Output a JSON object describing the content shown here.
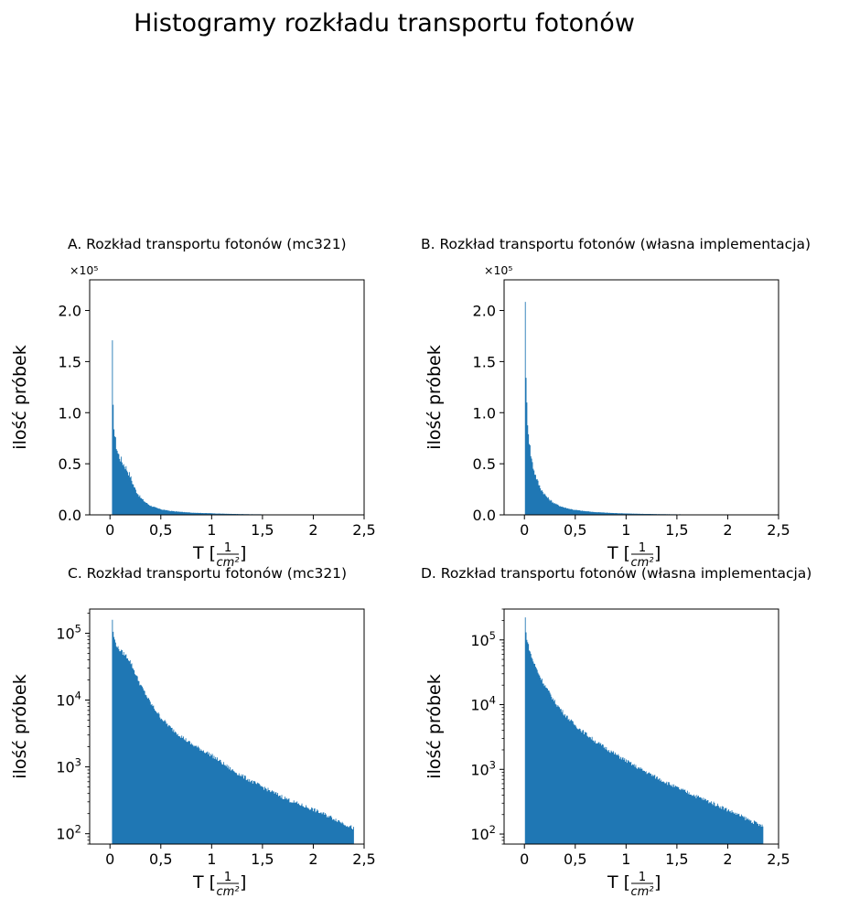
{
  "figure": {
    "title": "Histogramy rozkładu transportu fotonów"
  },
  "chart_data": [
    {
      "type": "bar",
      "id": "A",
      "title": "A. Rozkład transportu fotonów (mc321)",
      "xlabel": "T [1/cm²]",
      "xlabel_main": "T [",
      "xlabel_num": "1",
      "xlabel_den": "cm²",
      "xlabel_close": "]",
      "ylabel": "ilość próbek",
      "yscale": "linear",
      "y_multiplier": "×10⁵",
      "xlim": [
        -0.2,
        2.5
      ],
      "ylim": [
        0,
        230000
      ],
      "xticks": [
        0,
        0.5,
        1,
        1.5,
        2,
        2.5
      ],
      "xtick_labels": [
        "0",
        "0,5",
        "1",
        "1,5",
        "2",
        "2,5"
      ],
      "yticks": [
        0,
        50000,
        100000,
        150000,
        200000
      ],
      "ytick_labels": [
        "0.0",
        "0.5",
        "1.0",
        "1.5",
        "2.0"
      ],
      "color": "#1f77b4",
      "x": [
        0.02,
        0.03,
        0.05,
        0.08,
        0.12,
        0.16,
        0.2,
        0.25,
        0.3,
        0.4,
        0.5,
        0.6,
        0.8,
        1.0,
        1.2,
        1.4,
        1.6,
        1.8,
        2.0,
        2.2,
        2.4
      ],
      "values": [
        162000,
        105000,
        75000,
        60000,
        52000,
        46000,
        38000,
        25000,
        17000,
        9000,
        5500,
        3800,
        2200,
        1500,
        900,
        600,
        420,
        300,
        230,
        170,
        120
      ]
    },
    {
      "type": "bar",
      "id": "B",
      "title": "B. Rozkład transportu fotonów (własna implementacja)",
      "xlabel": "T [1/cm²]",
      "xlabel_main": "T [",
      "xlabel_num": "1",
      "xlabel_den": "cm²",
      "xlabel_close": "]",
      "ylabel": "ilość próbek",
      "yscale": "linear",
      "y_multiplier": "×10⁵",
      "xlim": [
        -0.2,
        2.5
      ],
      "ylim": [
        0,
        230000
      ],
      "xticks": [
        0,
        0.5,
        1,
        1.5,
        2,
        2.5
      ],
      "xtick_labels": [
        "0",
        "0,5",
        "1",
        "1,5",
        "2",
        "2,5"
      ],
      "yticks": [
        0,
        50000,
        100000,
        150000,
        200000
      ],
      "ytick_labels": [
        "0.0",
        "0.5",
        "1.0",
        "1.5",
        "2.0"
      ],
      "color": "#1f77b4",
      "x": [
        0.005,
        0.01,
        0.02,
        0.04,
        0.06,
        0.08,
        0.1,
        0.15,
        0.2,
        0.3,
        0.4,
        0.5,
        0.7,
        0.9,
        1.1,
        1.3,
        1.5,
        1.7,
        1.9,
        2.1,
        2.35
      ],
      "values": [
        220000,
        160000,
        115000,
        82000,
        62000,
        50000,
        42000,
        28000,
        20000,
        11000,
        7000,
        4800,
        2700,
        1700,
        1100,
        750,
        520,
        380,
        280,
        200,
        130
      ]
    },
    {
      "type": "bar",
      "id": "C",
      "title": "C. Rozkład transportu fotonów (mc321)",
      "xlabel": "T [1/cm²]",
      "xlabel_main": "T [",
      "xlabel_num": "1",
      "xlabel_den": "cm²",
      "xlabel_close": "]",
      "ylabel": "ilość próbek",
      "yscale": "log",
      "xlim": [
        -0.2,
        2.5
      ],
      "ylim": [
        70,
        230000
      ],
      "xticks": [
        0,
        0.5,
        1,
        1.5,
        2,
        2.5
      ],
      "xtick_labels": [
        "0",
        "0,5",
        "1",
        "1,5",
        "2",
        "2,5"
      ],
      "yticks": [
        100,
        1000,
        10000,
        100000
      ],
      "ytick_base": [
        "10",
        "10",
        "10",
        "10"
      ],
      "ytick_exp": [
        "2",
        "3",
        "4",
        "5"
      ],
      "color": "#1f77b4",
      "x": [
        0.02,
        0.03,
        0.05,
        0.08,
        0.12,
        0.16,
        0.2,
        0.25,
        0.3,
        0.4,
        0.5,
        0.6,
        0.8,
        1.0,
        1.2,
        1.4,
        1.6,
        1.8,
        2.0,
        2.2,
        2.4
      ],
      "values": [
        162000,
        105000,
        75000,
        60000,
        52000,
        46000,
        38000,
        25000,
        17000,
        9000,
        5500,
        3800,
        2200,
        1500,
        900,
        600,
        420,
        300,
        230,
        170,
        120
      ]
    },
    {
      "type": "bar",
      "id": "D",
      "title": "D. Rozkład transportu fotonów (własna implementacja)",
      "xlabel": "T [1/cm²]",
      "xlabel_main": "T [",
      "xlabel_num": "1",
      "xlabel_den": "cm²",
      "xlabel_close": "]",
      "ylabel": "ilość próbek",
      "yscale": "log",
      "xlim": [
        -0.2,
        2.5
      ],
      "ylim": [
        70,
        300000
      ],
      "xticks": [
        0,
        0.5,
        1,
        1.5,
        2,
        2.5
      ],
      "xtick_labels": [
        "0",
        "0,5",
        "1",
        "1,5",
        "2",
        "2,5"
      ],
      "yticks": [
        100,
        1000,
        10000,
        100000
      ],
      "ytick_base": [
        "10",
        "10",
        "10",
        "10"
      ],
      "ytick_exp": [
        "2",
        "3",
        "4",
        "5"
      ],
      "color": "#1f77b4",
      "x": [
        0.005,
        0.01,
        0.02,
        0.04,
        0.06,
        0.08,
        0.1,
        0.15,
        0.2,
        0.3,
        0.4,
        0.5,
        0.7,
        0.9,
        1.1,
        1.3,
        1.5,
        1.7,
        1.9,
        2.1,
        2.35
      ],
      "values": [
        220000,
        160000,
        115000,
        82000,
        62000,
        50000,
        42000,
        28000,
        20000,
        11000,
        7000,
        4800,
        2700,
        1700,
        1100,
        750,
        520,
        380,
        280,
        200,
        130
      ]
    }
  ]
}
